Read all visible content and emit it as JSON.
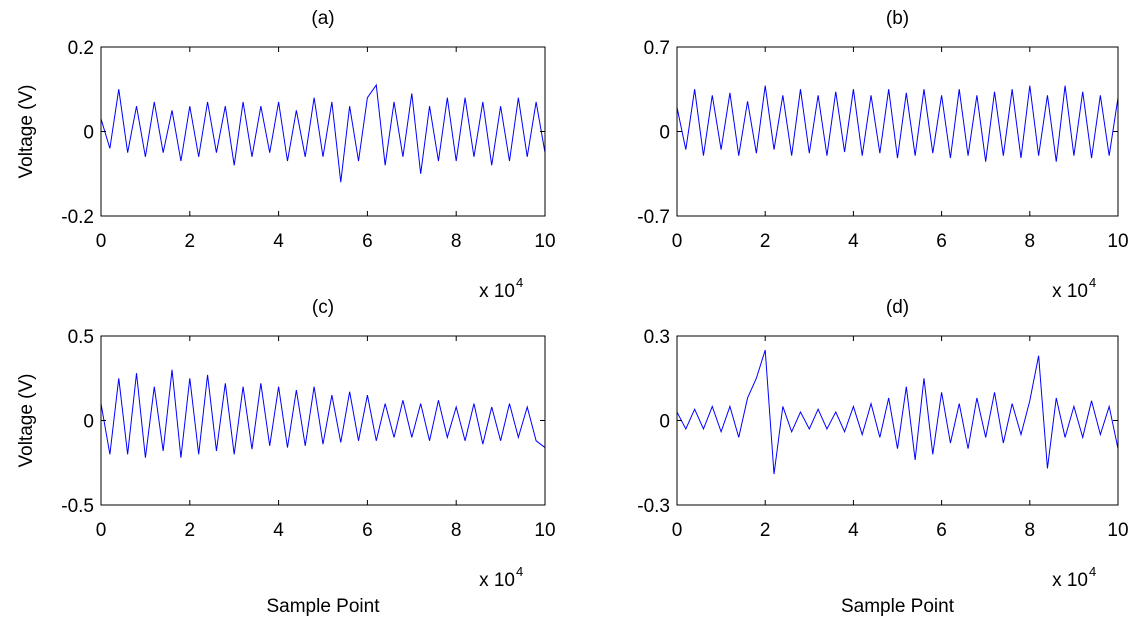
{
  "chart_data": [
    {
      "type": "line",
      "title": "(a)",
      "ylabel": "Voltage (V)",
      "x_scale_label": "x 10",
      "x_scale_exponent": "4",
      "xlim": [
        0,
        10
      ],
      "xticks": [
        0,
        2,
        4,
        6,
        8,
        10
      ],
      "ylim": [
        -0.2,
        0.2
      ],
      "yticks": [
        -0.2,
        0,
        0.2
      ],
      "color": "#0000ff",
      "x": [
        0,
        0.2,
        0.4,
        0.6,
        0.8,
        1,
        1.2,
        1.4,
        1.6,
        1.8,
        2,
        2.2,
        2.4,
        2.6,
        2.8,
        3,
        3.2,
        3.4,
        3.6,
        3.8,
        4,
        4.2,
        4.4,
        4.6,
        4.8,
        5,
        5.2,
        5.4,
        5.6,
        5.8,
        6,
        6.2,
        6.4,
        6.6,
        6.8,
        7,
        7.2,
        7.4,
        7.6,
        7.8,
        8,
        8.2,
        8.4,
        8.6,
        8.8,
        9,
        9.2,
        9.4,
        9.6,
        9.8,
        10
      ],
      "values": [
        0.03,
        -0.04,
        0.1,
        -0.05,
        0.06,
        -0.06,
        0.07,
        -0.05,
        0.05,
        -0.07,
        0.06,
        -0.06,
        0.07,
        -0.05,
        0.06,
        -0.08,
        0.07,
        -0.06,
        0.06,
        -0.05,
        0.07,
        -0.07,
        0.05,
        -0.06,
        0.08,
        -0.06,
        0.07,
        -0.12,
        0.06,
        -0.07,
        0.08,
        0.11,
        -0.08,
        0.07,
        -0.06,
        0.09,
        -0.1,
        0.06,
        -0.07,
        0.08,
        -0.07,
        0.08,
        -0.06,
        0.07,
        -0.08,
        0.06,
        -0.07,
        0.08,
        -0.06,
        0.07,
        -0.05
      ]
    },
    {
      "type": "line",
      "title": "(b)",
      "x_scale_label": "x 10",
      "x_scale_exponent": "4",
      "xlim": [
        0,
        10
      ],
      "xticks": [
        0,
        2,
        4,
        6,
        8,
        10
      ],
      "ylim": [
        -0.7,
        0.7
      ],
      "yticks": [
        -0.7,
        0,
        0.7
      ],
      "color": "#0000ff",
      "x": [
        0,
        0.2,
        0.4,
        0.6,
        0.8,
        1,
        1.2,
        1.4,
        1.6,
        1.8,
        2,
        2.2,
        2.4,
        2.6,
        2.8,
        3,
        3.2,
        3.4,
        3.6,
        3.8,
        4,
        4.2,
        4.4,
        4.6,
        4.8,
        5,
        5.2,
        5.4,
        5.6,
        5.8,
        6,
        6.2,
        6.4,
        6.6,
        6.8,
        7,
        7.2,
        7.4,
        7.6,
        7.8,
        8,
        8.2,
        8.4,
        8.6,
        8.8,
        9,
        9.2,
        9.4,
        9.6,
        9.8,
        10
      ],
      "values": [
        0.2,
        -0.15,
        0.35,
        -0.2,
        0.3,
        -0.15,
        0.32,
        -0.2,
        0.25,
        -0.18,
        0.38,
        -0.15,
        0.3,
        -0.2,
        0.35,
        -0.18,
        0.3,
        -0.2,
        0.33,
        -0.17,
        0.35,
        -0.2,
        0.3,
        -0.18,
        0.35,
        -0.22,
        0.32,
        -0.2,
        0.35,
        -0.18,
        0.3,
        -0.22,
        0.35,
        -0.2,
        0.3,
        -0.25,
        0.33,
        -0.2,
        0.35,
        -0.22,
        0.38,
        -0.2,
        0.3,
        -0.25,
        0.38,
        -0.2,
        0.33,
        -0.22,
        0.3,
        -0.2,
        0.28
      ]
    },
    {
      "type": "line",
      "title": "(c)",
      "ylabel": "Voltage (V)",
      "xlabel": "Sample Point",
      "x_scale_label": "x 10",
      "x_scale_exponent": "4",
      "xlim": [
        0,
        10
      ],
      "xticks": [
        0,
        2,
        4,
        6,
        8,
        10
      ],
      "ylim": [
        -0.5,
        0.5
      ],
      "yticks": [
        -0.5,
        0,
        0.5
      ],
      "color": "#0000ff",
      "x": [
        0,
        0.2,
        0.4,
        0.6,
        0.8,
        1,
        1.2,
        1.4,
        1.6,
        1.8,
        2,
        2.2,
        2.4,
        2.6,
        2.8,
        3,
        3.2,
        3.4,
        3.6,
        3.8,
        4,
        4.2,
        4.4,
        4.6,
        4.8,
        5,
        5.2,
        5.4,
        5.6,
        5.8,
        6,
        6.2,
        6.4,
        6.6,
        6.8,
        7,
        7.2,
        7.4,
        7.6,
        7.8,
        8,
        8.2,
        8.4,
        8.6,
        8.8,
        9,
        9.2,
        9.4,
        9.6,
        9.8,
        10
      ],
      "values": [
        0.1,
        -0.2,
        0.25,
        -0.2,
        0.28,
        -0.22,
        0.2,
        -0.18,
        0.3,
        -0.22,
        0.25,
        -0.2,
        0.27,
        -0.18,
        0.22,
        -0.2,
        0.2,
        -0.17,
        0.22,
        -0.15,
        0.2,
        -0.16,
        0.18,
        -0.15,
        0.2,
        -0.14,
        0.15,
        -0.13,
        0.17,
        -0.12,
        0.15,
        -0.12,
        0.1,
        -0.1,
        0.12,
        -0.1,
        0.1,
        -0.12,
        0.12,
        -0.1,
        0.08,
        -0.12,
        0.1,
        -0.14,
        0.08,
        -0.12,
        0.1,
        -0.1,
        0.08,
        -0.12,
        -0.16
      ]
    },
    {
      "type": "line",
      "title": "(d)",
      "xlabel": "Sample Point",
      "x_scale_label": "x 10",
      "x_scale_exponent": "4",
      "xlim": [
        0,
        10
      ],
      "xticks": [
        0,
        2,
        4,
        6,
        8,
        10
      ],
      "ylim": [
        -0.3,
        0.3
      ],
      "yticks": [
        -0.3,
        0,
        0.3
      ],
      "color": "#0000ff",
      "x": [
        0,
        0.2,
        0.4,
        0.6,
        0.8,
        1,
        1.2,
        1.4,
        1.6,
        1.8,
        2,
        2.2,
        2.4,
        2.6,
        2.8,
        3,
        3.2,
        3.4,
        3.6,
        3.8,
        4,
        4.2,
        4.4,
        4.6,
        4.8,
        5,
        5.2,
        5.4,
        5.6,
        5.8,
        6,
        6.2,
        6.4,
        6.6,
        6.8,
        7,
        7.2,
        7.4,
        7.6,
        7.8,
        8,
        8.2,
        8.4,
        8.6,
        8.8,
        9,
        9.2,
        9.4,
        9.6,
        9.8,
        10
      ],
      "values": [
        0.03,
        -0.03,
        0.04,
        -0.03,
        0.05,
        -0.04,
        0.05,
        -0.06,
        0.08,
        0.15,
        0.25,
        -0.19,
        0.05,
        -0.04,
        0.03,
        -0.03,
        0.04,
        -0.03,
        0.03,
        -0.04,
        0.05,
        -0.05,
        0.06,
        -0.06,
        0.08,
        -0.1,
        0.12,
        -0.14,
        0.15,
        -0.12,
        0.1,
        -0.08,
        0.06,
        -0.1,
        0.08,
        -0.06,
        0.1,
        -0.08,
        0.06,
        -0.05,
        0.07,
        0.23,
        -0.17,
        0.08,
        -0.06,
        0.05,
        -0.06,
        0.07,
        -0.05,
        0.05,
        -0.1
      ]
    }
  ]
}
